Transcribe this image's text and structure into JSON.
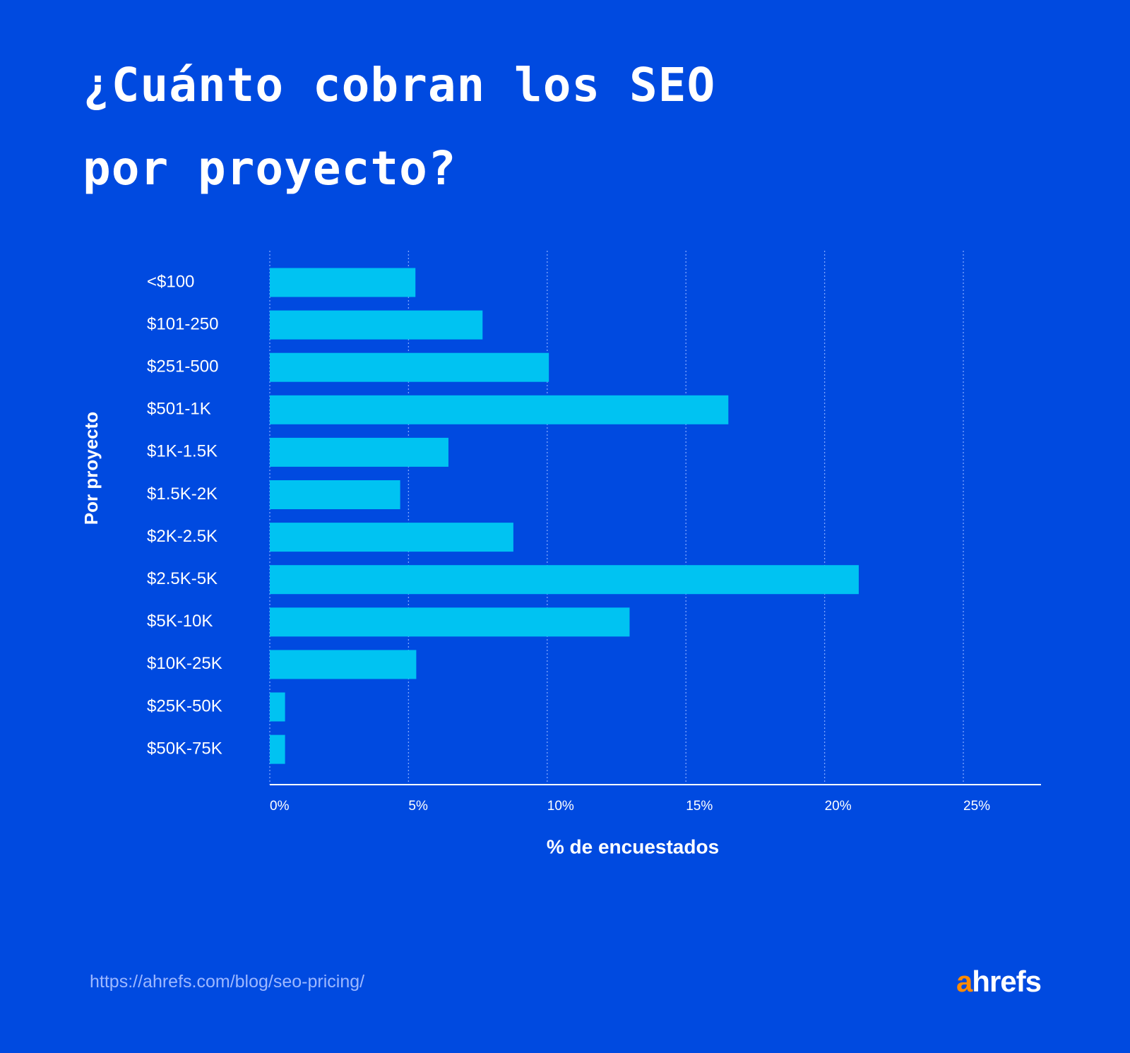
{
  "chart_data": {
    "type": "barh",
    "title": "¿Cuánto cobran los SEO por proyecto?",
    "categories": [
      "<$100",
      "$101-250",
      "$251-500",
      "$501-1K",
      "$1K-1.5K",
      "$1.5K-2K",
      "$2K-2.5K",
      "$2.5K-5K",
      "$5K-10K",
      "$10K-25K",
      "$25K-50K",
      "$50K-75K"
    ],
    "values": [
      5.25,
      7.67,
      10.06,
      16.53,
      6.44,
      4.7,
      8.78,
      21.23,
      12.97,
      5.28,
      0.55,
      0.55
    ],
    "color": "#00c3f2",
    "xlim": [
      0,
      27.8
    ],
    "xticks": [
      {
        "value": 0,
        "label": "0%"
      },
      {
        "value": 5,
        "label": "5%"
      },
      {
        "value": 10,
        "label": "10%"
      },
      {
        "value": 15,
        "label": "15%"
      },
      {
        "value": 20,
        "label": "20%"
      },
      {
        "value": 25,
        "label": "25%"
      }
    ],
    "grid": true,
    "xlabel": "% de encuestados",
    "ylabel": "Por proyecto"
  },
  "footer": {
    "url": "https://ahrefs.com/blog/seo-pricing/",
    "brand": "ahrefs"
  }
}
